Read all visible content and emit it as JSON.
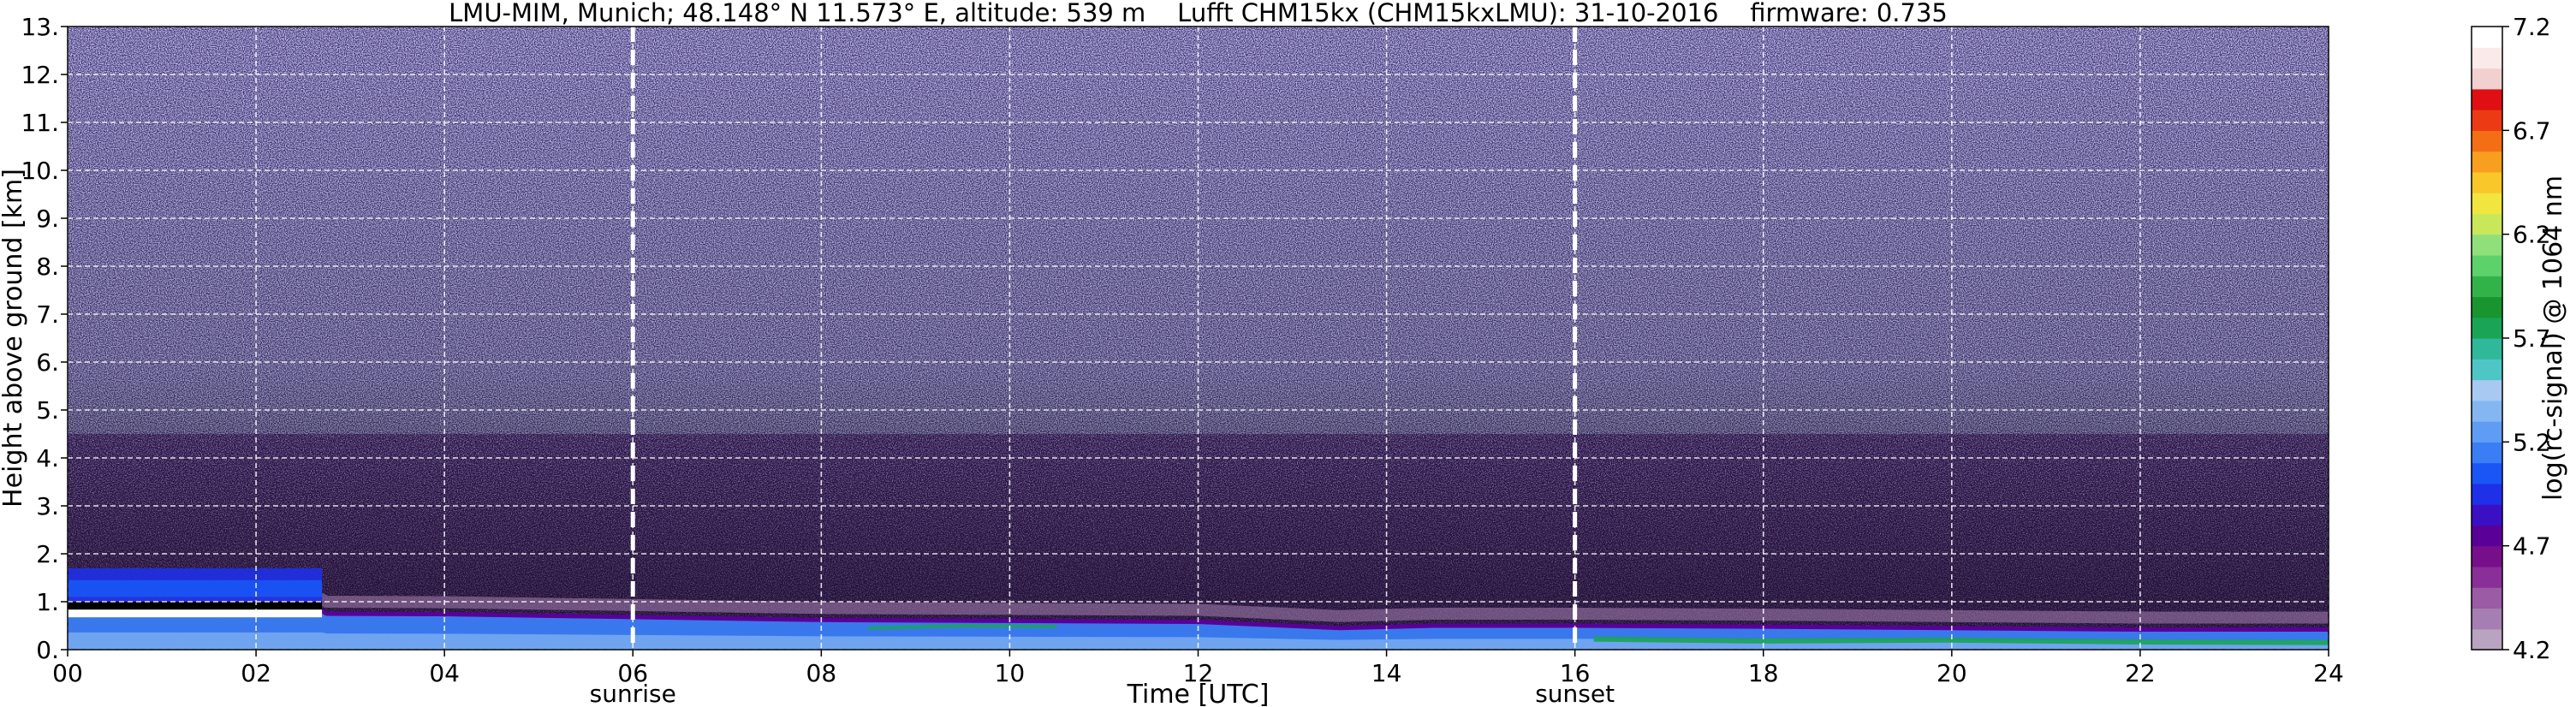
{
  "chart_data": {
    "type": "heatmap",
    "title": "LMU-MIM, Munich; 48.148° N 11.573° E, altitude: 539 m    Lufft CHM15kx (CHM15kxLMU): 31-10-2016    firmware: 0.735",
    "xlabel": "Time [UTC]",
    "ylabel": "Height above ground [km]",
    "colorbar_label": "log(rc-signal) @ 1064 nm",
    "xlim": [
      0,
      24
    ],
    "ylim": [
      0,
      13
    ],
    "x_ticks": [
      0,
      2,
      4,
      6,
      8,
      10,
      12,
      14,
      16,
      18,
      20,
      22,
      24
    ],
    "x_tick_labels": [
      "00",
      "02",
      "04",
      "06",
      "08",
      "10",
      "12",
      "14",
      "16",
      "18",
      "20",
      "22",
      "24"
    ],
    "y_ticks": [
      0,
      1,
      2,
      3,
      4,
      5,
      6,
      7,
      8,
      9,
      10,
      11,
      12,
      13
    ],
    "y_tick_labels": [
      "0.",
      "1.",
      "2.",
      "3.",
      "4.",
      "5.",
      "6.",
      "7.",
      "8.",
      "9.",
      "10.",
      "11.",
      "12.",
      "13."
    ],
    "grid": true,
    "colorbar_range": [
      4.2,
      7.2
    ],
    "colorbar_ticks": [
      4.2,
      4.7,
      5.2,
      5.7,
      6.2,
      6.7,
      7.2
    ],
    "colorbar_tick_labels": [
      "4.2",
      "4.7",
      "5.2",
      "5.7",
      "6.2",
      "6.7",
      "7.2"
    ],
    "colorbar_colors": [
      "#b8a3c0",
      "#a57fb1",
      "#9b5ba5",
      "#8a2f97",
      "#780f8a",
      "#5a0098",
      "#3b10c4",
      "#1f30e8",
      "#1a55f5",
      "#3a7df5",
      "#5f9df5",
      "#84b6f2",
      "#a8c9f2",
      "#4fc6c6",
      "#30b89a",
      "#1aa455",
      "#18952f",
      "#32b34a",
      "#5dd16a",
      "#8fe07a",
      "#c8e85a",
      "#f1e540",
      "#f9c72a",
      "#f99f1f",
      "#f46e16",
      "#ec3a14",
      "#e00f13",
      "#f2d0d0",
      "#fbeaea",
      "#ffffff"
    ],
    "annotations": [
      {
        "text": "sunrise",
        "x": 6.0
      },
      {
        "text": "sunset",
        "x": 16.0
      }
    ],
    "vertical_markers": [
      6.0,
      16.0
    ],
    "background_value": 4.85,
    "boundary_layer_top_km": [
      {
        "x": 0.0,
        "y": 0.8
      },
      {
        "x": 2.7,
        "y": 0.8
      },
      {
        "x": 2.75,
        "y": 0.75
      },
      {
        "x": 4.0,
        "y": 0.74
      },
      {
        "x": 6.0,
        "y": 0.68
      },
      {
        "x": 8.0,
        "y": 0.62
      },
      {
        "x": 10.0,
        "y": 0.6
      },
      {
        "x": 12.0,
        "y": 0.58
      },
      {
        "x": 13.5,
        "y": 0.45
      },
      {
        "x": 14.5,
        "y": 0.5
      },
      {
        "x": 16.0,
        "y": 0.5
      },
      {
        "x": 18.0,
        "y": 0.48
      },
      {
        "x": 20.0,
        "y": 0.45
      },
      {
        "x": 22.0,
        "y": 0.42
      },
      {
        "x": 24.0,
        "y": 0.42
      }
    ],
    "cloud_layer": {
      "x_start": 0.0,
      "x_end": 2.7,
      "y_bottom": 0.8,
      "y_top": 1.0
    },
    "aerosol_layer": {
      "x_start": 0.0,
      "x_end": 2.7,
      "y_bottom": 1.0,
      "y_top": 1.7
    }
  }
}
